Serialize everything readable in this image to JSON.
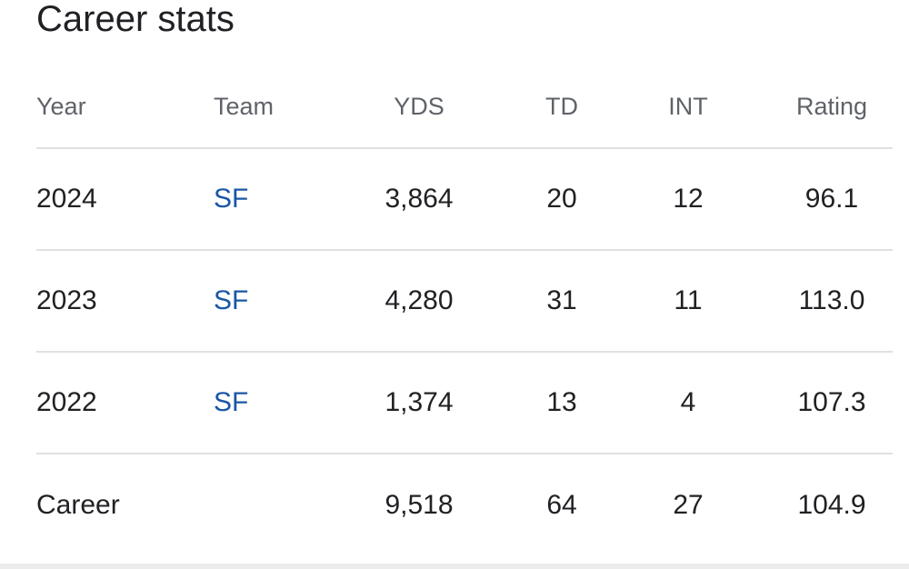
{
  "title": "Career stats",
  "columns": {
    "year": "Year",
    "team": "Team",
    "yds": "YDS",
    "td": "TD",
    "int": "INT",
    "rating": "Rating"
  },
  "rows": [
    {
      "year": "2024",
      "team": "SF",
      "yds": "3,864",
      "td": "20",
      "int": "12",
      "rating": "96.1"
    },
    {
      "year": "2023",
      "team": "SF",
      "yds": "4,280",
      "td": "31",
      "int": "11",
      "rating": "113.0"
    },
    {
      "year": "2022",
      "team": "SF",
      "yds": "1,374",
      "td": "13",
      "int": "4",
      "rating": "107.3"
    }
  ],
  "career": {
    "label": "Career",
    "yds": "9,518",
    "td": "64",
    "int": "27",
    "rating": "104.9"
  },
  "colors": {
    "link": "#1a56a6",
    "header_text": "#5f6368",
    "body_text": "#202124",
    "divider": "#e0e0e0"
  }
}
